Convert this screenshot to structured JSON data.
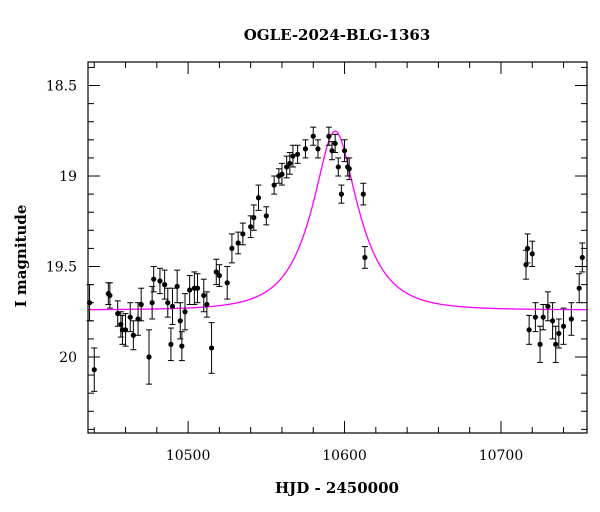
{
  "chart_data": {
    "type": "scatter",
    "title": "OGLE-2024-BLG-1363",
    "xlabel": "HJD - 2450000",
    "ylabel": "I magnitude",
    "xlim": [
      10436,
      10755
    ],
    "ylim": [
      20.42,
      18.37
    ],
    "y_inverted": true,
    "x_major_ticks": [
      10500,
      10600,
      10700
    ],
    "x_tick_labels": [
      "10500",
      "10600",
      "10700"
    ],
    "y_major_ticks": [
      18.5,
      19,
      19.5,
      20
    ],
    "y_tick_labels": [
      "18.5",
      "19",
      "19.5",
      "20"
    ],
    "grid": false,
    "colors": {
      "model": "#ff00ff",
      "points": "#000000"
    },
    "model": {
      "t0": 10594,
      "u0": 0.43,
      "tE": 27,
      "baseline": 19.74
    },
    "series": [
      {
        "x": [
          10437,
          10440,
          10449,
          10450,
          10455,
          10457,
          10458,
          10460,
          10463,
          10465,
          10468,
          10470,
          10475,
          10477,
          10478,
          10482,
          10485,
          10487,
          10489,
          10490,
          10493,
          10495,
          10496,
          10498,
          10501,
          10504,
          10506,
          10510,
          10512,
          10515,
          10518,
          10520,
          10525,
          10528,
          10532,
          10535,
          10540,
          10542,
          10545,
          10550,
          10555,
          10558,
          10560,
          10563,
          10565,
          10567,
          10570,
          10575,
          10580,
          10583,
          10590,
          10592,
          10594,
          10596,
          10598,
          10600,
          10602,
          10603,
          10612,
          10613,
          10716,
          10717,
          10718,
          10720,
          10722,
          10725,
          10727,
          10730,
          10733,
          10735,
          10737,
          10740,
          10745,
          10750,
          10752
        ],
        "y": [
          19.7,
          20.07,
          19.65,
          19.66,
          19.76,
          19.82,
          19.85,
          19.85,
          19.78,
          19.88,
          19.79,
          19.71,
          20.0,
          19.7,
          19.57,
          19.58,
          19.6,
          19.7,
          19.93,
          19.72,
          19.61,
          19.8,
          19.94,
          19.75,
          19.63,
          19.62,
          19.62,
          19.66,
          19.71,
          19.95,
          19.53,
          19.55,
          19.59,
          19.4,
          19.37,
          19.32,
          19.28,
          19.23,
          19.12,
          19.22,
          19.05,
          19.0,
          18.99,
          18.95,
          18.93,
          18.89,
          18.88,
          18.85,
          18.78,
          18.85,
          18.78,
          18.86,
          18.82,
          18.95,
          19.1,
          18.86,
          18.95,
          18.96,
          19.1,
          19.45,
          19.49,
          19.4,
          19.85,
          19.43,
          19.78,
          19.93,
          19.78,
          19.72,
          19.8,
          19.93,
          19.87,
          19.83,
          19.79,
          19.62,
          19.45
        ],
        "err": [
          0.1,
          0.12,
          0.06,
          0.07,
          0.07,
          0.07,
          0.08,
          0.09,
          0.08,
          0.08,
          0.09,
          0.09,
          0.15,
          0.09,
          0.07,
          0.07,
          0.08,
          0.08,
          0.09,
          0.1,
          0.09,
          0.1,
          0.08,
          0.1,
          0.08,
          0.09,
          0.08,
          0.09,
          0.07,
          0.14,
          0.07,
          0.06,
          0.09,
          0.08,
          0.06,
          0.06,
          0.06,
          0.07,
          0.07,
          0.05,
          0.05,
          0.04,
          0.06,
          0.06,
          0.06,
          0.06,
          0.05,
          0.05,
          0.05,
          0.05,
          0.05,
          0.05,
          0.05,
          0.05,
          0.05,
          0.06,
          0.05,
          0.06,
          0.06,
          0.06,
          0.08,
          0.08,
          0.08,
          0.07,
          0.08,
          0.1,
          0.07,
          0.08,
          0.1,
          0.1,
          0.08,
          0.1,
          0.09,
          0.08,
          0.08
        ]
      }
    ]
  }
}
